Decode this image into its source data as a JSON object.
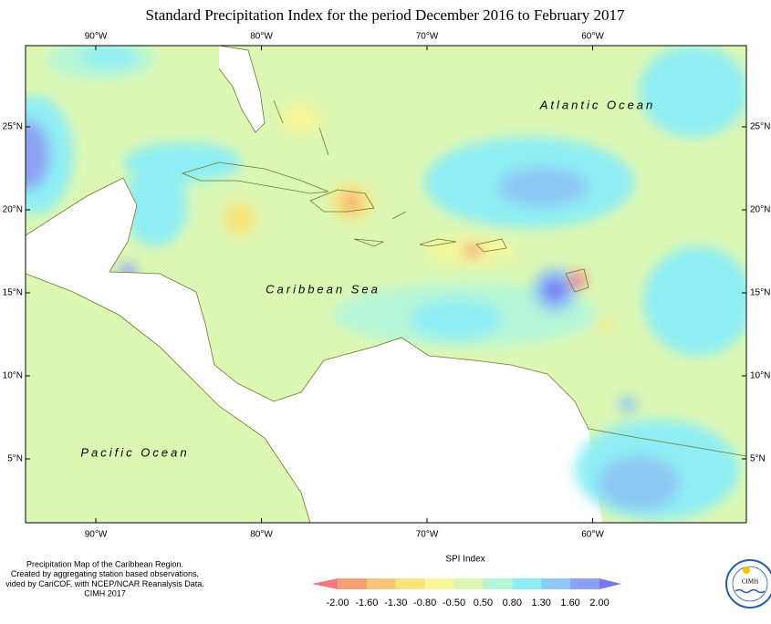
{
  "header": {
    "title": "Standard Precipitation Index for the period December 2016 to February 2017"
  },
  "map": {
    "lon_labels": [
      "90°W",
      "80°W",
      "70°W",
      "60°W"
    ],
    "lat_labels": [
      "25°N",
      "20°N",
      "15°N",
      "10°N",
      "5°N"
    ],
    "regions": [
      "Atlantic Ocean",
      "Caribbean Sea",
      "Pacific Ocean"
    ]
  },
  "caption": [
    "Precipitation Map of the Caribbean Region.",
    "Created by aggregating station based observations,",
    "vided by CariCOF, with NCEP/NCAR Reanalysis Data.",
    "CIMH 2017"
  ],
  "legend": {
    "title": "SPI Index",
    "ticks": [
      "-2.00",
      "-1.60",
      "-1.30",
      "-0.80",
      "-0.50",
      "0.50",
      "0.80",
      "1.30",
      "1.60",
      "2.00"
    ]
  },
  "logo": {
    "text": "CIMH"
  }
}
